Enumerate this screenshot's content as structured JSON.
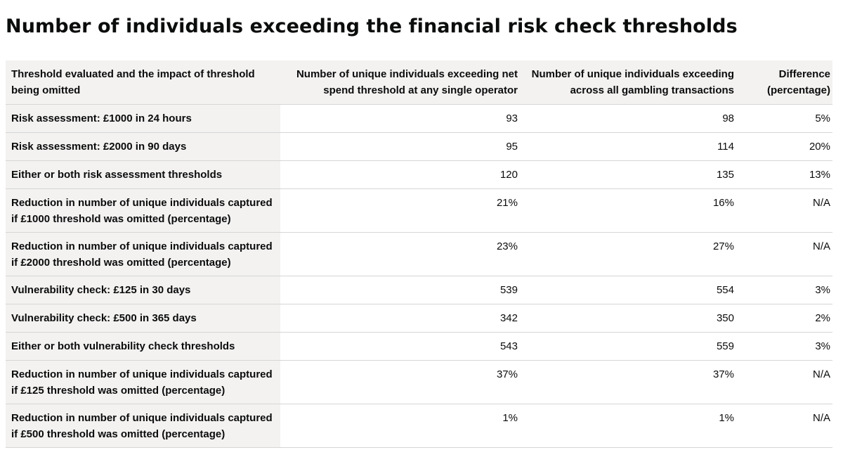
{
  "title": "Number of individuals exceeding the financial risk check thresholds",
  "table": {
    "headers": [
      "Threshold evaluated and the impact of threshold being omitted",
      "Number of unique individuals exceeding net spend threshold at any single operator",
      "Number of unique individuals exceeding across all gambling transactions",
      "Difference (percentage)"
    ],
    "rows": [
      {
        "label": "Risk assessment: £1000 in 24 hours",
        "single_operator": "93",
        "all_transactions": "98",
        "difference": "5%"
      },
      {
        "label": "Risk assessment: £2000 in 90 days",
        "single_operator": "95",
        "all_transactions": "114",
        "difference": "20%"
      },
      {
        "label": "Either or both risk assessment thresholds",
        "single_operator": "120",
        "all_transactions": "135",
        "difference": "13%"
      },
      {
        "label": "Reduction in number of unique individuals captured if £1000 threshold was omitted (percentage)",
        "single_operator": "21%",
        "all_transactions": "16%",
        "difference": "N/A"
      },
      {
        "label": "Reduction in number of unique individuals captured if £2000 threshold was omitted (percentage)",
        "single_operator": "23%",
        "all_transactions": "27%",
        "difference": "N/A"
      },
      {
        "label": "Vulnerability check: £125 in 30 days",
        "single_operator": "539",
        "all_transactions": "554",
        "difference": "3%"
      },
      {
        "label": "Vulnerability check: £500 in 365 days",
        "single_operator": "342",
        "all_transactions": "350",
        "difference": "2%"
      },
      {
        "label": "Either or both vulnerability check thresholds",
        "single_operator": "543",
        "all_transactions": "559",
        "difference": "3%"
      },
      {
        "label": "Reduction in number of unique individuals captured if £125 threshold was omitted (percentage)",
        "single_operator": "37%",
        "all_transactions": "37%",
        "difference": "N/A"
      },
      {
        "label": "Reduction in number of unique individuals captured if £500 threshold was omitted (percentage)",
        "single_operator": "1%",
        "all_transactions": "1%",
        "difference": "N/A"
      }
    ]
  }
}
